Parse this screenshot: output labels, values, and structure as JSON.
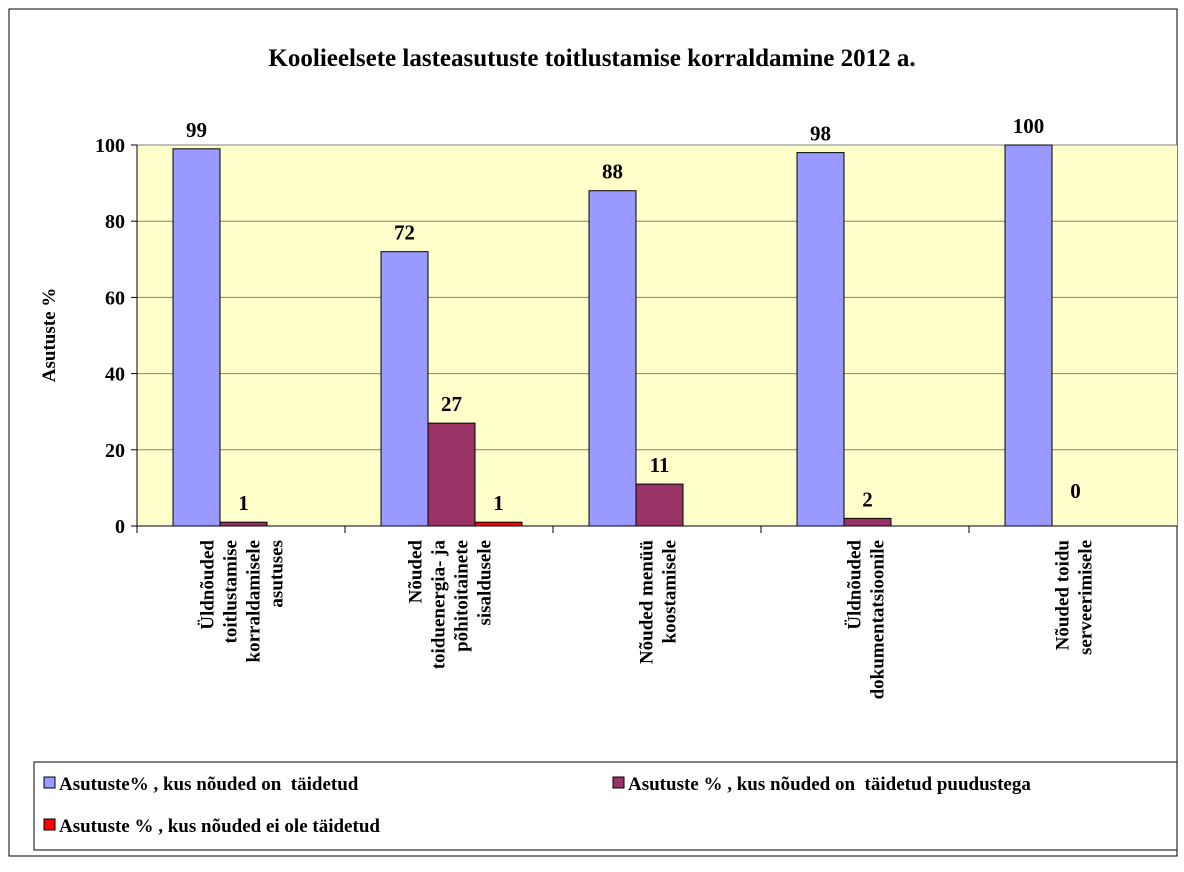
{
  "chart_data": {
    "type": "bar",
    "title": "Koolieelsete lasteasutuste toitlustamise korraldamine 2012 a.",
    "y_label": "Asutuste %",
    "categories": [
      [
        "Üldnõuded",
        "toitlustamise",
        "korraldamisele",
        "asutuses"
      ],
      [
        "Nõuded",
        "toiduenergia- ja",
        "põhitoitainete",
        "sisaldusele"
      ],
      [
        "Nõuded menüü",
        "koostamisele"
      ],
      [
        "Üldnõuded",
        "dokumentatsioonile"
      ],
      [
        "Nõuded toidu",
        "serveerimisele"
      ]
    ],
    "series": [
      {
        "name": "Asutuste% , kus nõuded on  täidetud",
        "color": "#9999ff",
        "values": [
          99,
          72,
          88,
          98,
          100
        ]
      },
      {
        "name": "Asutuste % , kus nõuded on  täidetud puudustega",
        "color": "#993366",
        "values": [
          1,
          27,
          11,
          2,
          0
        ]
      },
      {
        "name": "Asutuste % , kus nõuded ei ole täidetud",
        "color": "#ff0000",
        "values": [
          null,
          1,
          null,
          null,
          null
        ]
      }
    ],
    "ylim": [
      0,
      100
    ],
    "yticks": [
      0,
      20,
      40,
      60,
      80,
      100
    ],
    "grid": true,
    "legend": "bottom"
  }
}
